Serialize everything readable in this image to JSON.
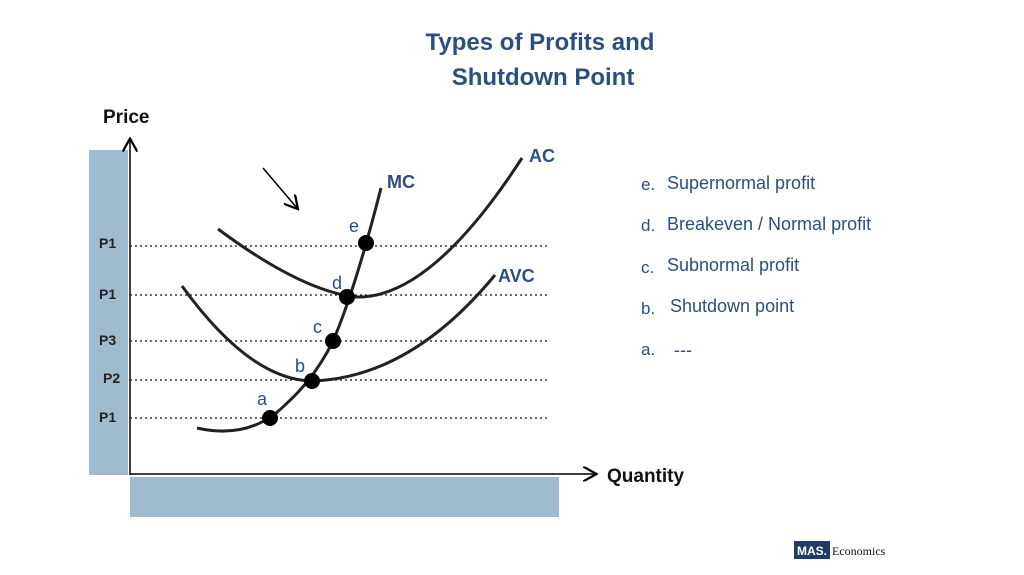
{
  "title": [
    "Types of Profits and",
    "Shutdown Point"
  ],
  "axes": {
    "y_label": "Price",
    "x_label": "Quantity"
  },
  "price_levels": [
    "P1",
    "P1",
    "P3",
    "P2",
    "P1"
  ],
  "curves": {
    "mc": "MC",
    "ac": "AC",
    "avc": "AVC"
  },
  "points": [
    "e",
    "d",
    "c",
    "b",
    "a"
  ],
  "legend": [
    {
      "key": "e.",
      "text": "Supernormal profit"
    },
    {
      "key": "d.",
      "text": "Breakeven / Normal profit"
    },
    {
      "key": "c.",
      "text": "Subnormal profit"
    },
    {
      "key": "b.",
      "text": "Shutdown point"
    },
    {
      "key": "a.",
      "text": "---"
    }
  ],
  "logo": {
    "mark": "MAS.",
    "text": "Economics"
  }
}
